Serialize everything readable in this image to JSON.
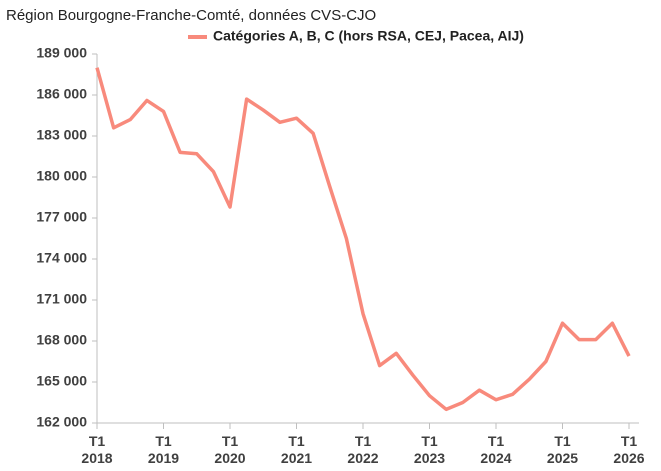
{
  "chart_data": {
    "type": "line",
    "title": "Région Bourgogne-Franche-Comté, données CVS-CJO",
    "categories": [
      "T1 2018",
      null,
      null,
      null,
      "T1 2019",
      null,
      null,
      null,
      "T1 2020",
      null,
      null,
      null,
      "T1 2021",
      null,
      null,
      null,
      "T1 2022",
      null,
      null,
      null,
      "T1 2023",
      null,
      null,
      null,
      "T1 2024",
      null,
      null,
      null,
      "T1 2025",
      null,
      null,
      null,
      "T1 2026"
    ],
    "series": [
      {
        "name": "Catégories A, B, C (hors RSA, CEJ, Pacea, AIJ)",
        "color": "#f88a7c",
        "values": [
          188000,
          183600,
          184200,
          185600,
          184800,
          181800,
          181700,
          180400,
          177800,
          185700,
          184900,
          184000,
          184300,
          183200,
          179300,
          175500,
          170000,
          166200,
          167100,
          165500,
          164000,
          163000,
          163500,
          164400,
          163700,
          164100,
          165200,
          166500,
          169300,
          168100,
          168100,
          169300,
          166900
        ]
      }
    ],
    "ylim": [
      162000,
      189000
    ],
    "yticks": [
      {
        "value": 162000,
        "label": "162 000"
      },
      {
        "value": 165000,
        "label": "165 000"
      },
      {
        "value": 168000,
        "label": "168 000"
      },
      {
        "value": 171000,
        "label": "171 000"
      },
      {
        "value": 174000,
        "label": "174 000"
      },
      {
        "value": 177000,
        "label": "177 000"
      },
      {
        "value": 180000,
        "label": "180 000"
      },
      {
        "value": 183000,
        "label": "183 000"
      },
      {
        "value": 186000,
        "label": "186 000"
      },
      {
        "value": 189000,
        "label": "189 000"
      }
    ],
    "grid": false,
    "legend": "top"
  }
}
